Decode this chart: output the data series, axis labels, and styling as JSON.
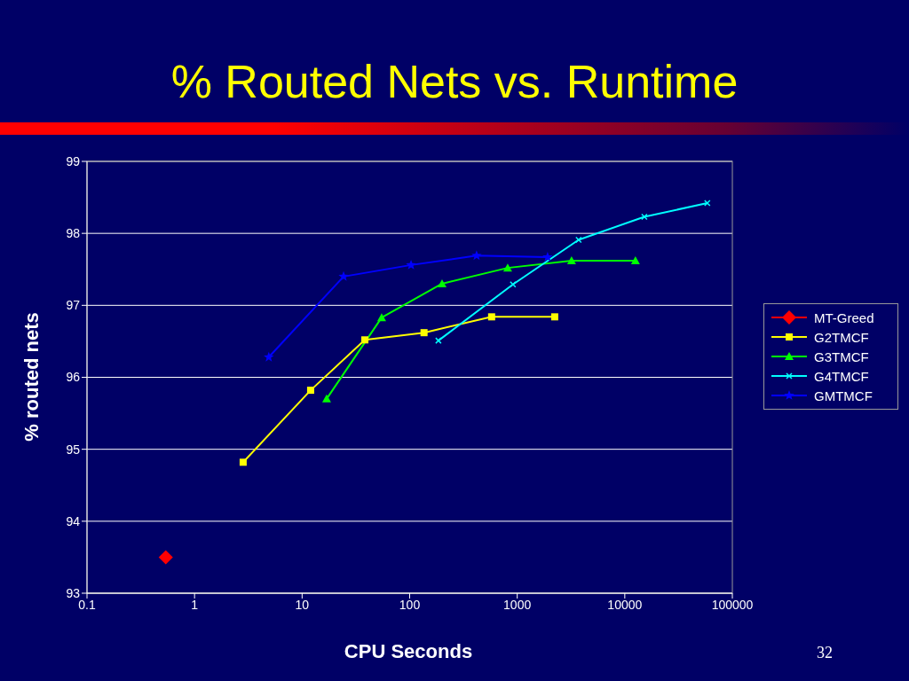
{
  "chart_data": {
    "type": "line",
    "title": "% Routed Nets vs. Runtime",
    "xlabel": "CPU Seconds",
    "ylabel": "% routed nets",
    "log": "x",
    "grid": "y",
    "legend": "right",
    "xlim": [
      0.1,
      100000
    ],
    "xticks": [
      0.1,
      1,
      10,
      100,
      1000,
      10000,
      100000
    ],
    "ylim": [
      93,
      99
    ],
    "yticks": [
      93,
      94,
      95,
      96,
      97,
      98,
      99
    ],
    "annotations": [
      "32"
    ],
    "series": [
      {
        "name": "MT-Greed",
        "color": "#ff0000",
        "marker": "diamond",
        "x": [
          0.54
        ],
        "values": [
          93.5
        ]
      },
      {
        "name": "G2TMCF",
        "color": "#ffff00",
        "marker": "square",
        "x": [
          2.83,
          12,
          38.3,
          136,
          578,
          2230
        ],
        "values": [
          94.82,
          95.82,
          96.52,
          96.62,
          96.84,
          96.84
        ]
      },
      {
        "name": "G3TMCF",
        "color": "#00ff00",
        "marker": "triangle",
        "x": [
          16.9,
          54.9,
          200,
          815,
          3200,
          12560
        ],
        "values": [
          95.7,
          96.83,
          97.3,
          97.52,
          97.62,
          97.62
        ]
      },
      {
        "name": "G4TMCF",
        "color": "#00ffff",
        "marker": "cross",
        "x": [
          185,
          912,
          3720,
          15200,
          58500
        ],
        "values": [
          96.51,
          97.29,
          97.91,
          98.23,
          98.42
        ]
      },
      {
        "name": "GMTMCF",
        "color": "#0000ff",
        "marker": "star",
        "x": [
          4.9,
          24.3,
          103,
          419,
          1915
        ],
        "values": [
          96.28,
          97.4,
          97.56,
          97.69,
          97.67
        ]
      }
    ]
  }
}
